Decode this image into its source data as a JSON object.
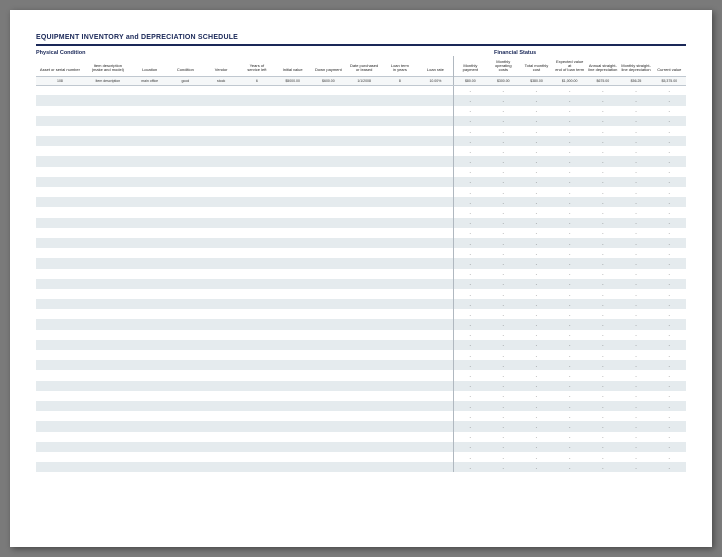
{
  "title": "EQUIPMENT INVENTORY and DEPRECIATION SCHEDULE",
  "section_physical": "Physical Condition",
  "section_financial": "Financial Status",
  "colors": {
    "accent": "#1a2858",
    "row_alt": "#e5ebee",
    "page_bg": "#ffffff",
    "outer_bg": "#7a7a7a"
  },
  "columns": [
    {
      "key": "asset",
      "label": "Asset or serial number",
      "sample": "108"
    },
    {
      "key": "desc",
      "label": "Item description\n(make and model)",
      "sample": "Item description"
    },
    {
      "key": "loc",
      "label": "Location",
      "sample": "main office"
    },
    {
      "key": "cond",
      "label": "Condition",
      "sample": "good"
    },
    {
      "key": "vendor",
      "label": "Vendor",
      "sample": "stock"
    },
    {
      "key": "years",
      "label": "Years of\nservice left",
      "sample": "6"
    },
    {
      "key": "initval",
      "label": "Initial value",
      "sample": "$5000.00"
    },
    {
      "key": "down",
      "label": "Down payment",
      "sample": "$600.00"
    },
    {
      "key": "date",
      "label": "Date purchased\nor leased",
      "sample": "1/1/2008"
    },
    {
      "key": "term",
      "label": "Loan term\nin years",
      "sample": "8"
    },
    {
      "key": "rate",
      "label": "Loan rate",
      "sample": "10.00%"
    },
    {
      "key": "monthly",
      "label": "Monthly\npayment",
      "sample": "$80.00"
    },
    {
      "key": "opcost",
      "label": "Monthly\noperating\ncosts",
      "sample": "$300.00"
    },
    {
      "key": "totmonth",
      "label": "Total monthly\ncost",
      "sample": "$380.00"
    },
    {
      "key": "expval",
      "label": "Expected value\nat\nend of loan term",
      "sample": "$1,000.00"
    },
    {
      "key": "sldep",
      "label": "Annual straight-\nline depreciation",
      "sample": "$675.00"
    },
    {
      "key": "mdep",
      "label": "Monthly straight-\nline depreciation",
      "sample": "$56.25"
    },
    {
      "key": "curval",
      "label": "Current value",
      "sample": "$5,375.00"
    }
  ],
  "dash": "-",
  "num_rows": 38,
  "financial_start_col": 11,
  "financial_dash_cols": [
    11,
    12,
    13,
    14,
    15,
    16,
    17
  ]
}
